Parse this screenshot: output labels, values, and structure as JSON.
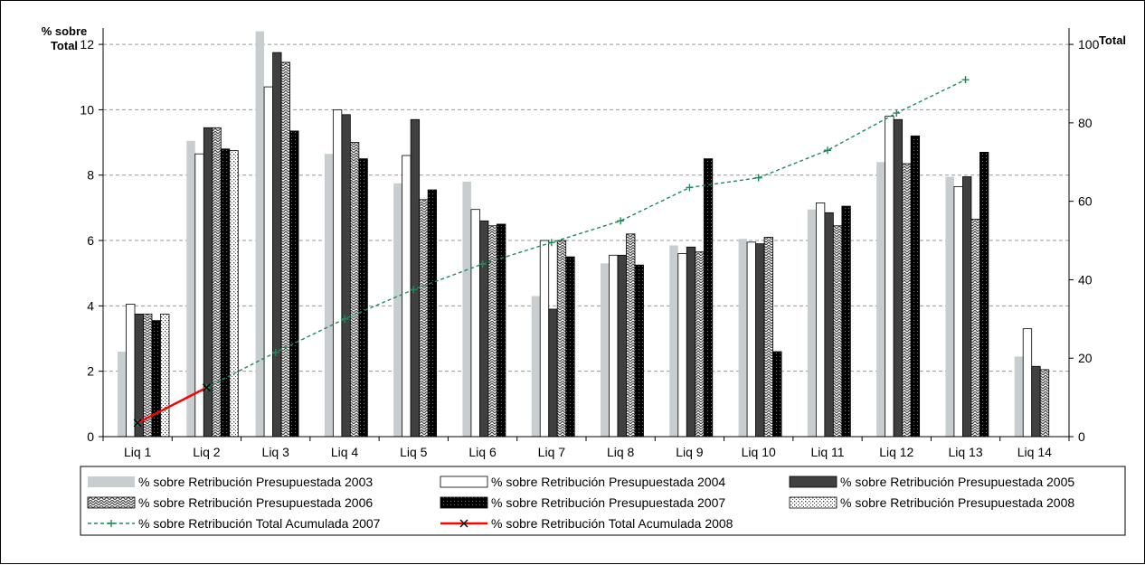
{
  "chart_data": {
    "type": "bar",
    "categories": [
      "Liq 1",
      "Liq 2",
      "Liq 3",
      "Liq 4",
      "Liq 5",
      "Liq 6",
      "Liq 7",
      "Liq 8",
      "Liq 9",
      "Liq 10",
      "Liq 11",
      "Liq 12",
      "Liq 13",
      "Liq 14"
    ],
    "ylabel_left": "% sobre Total",
    "ylabel_right": "Total",
    "ylim_left": [
      0,
      12.5
    ],
    "ylim_right": [
      0,
      104.17
    ],
    "yticks_left": [
      "0",
      "2",
      "4",
      "6",
      "8",
      "10",
      "12"
    ],
    "yticks_right": [
      "0",
      "20",
      "40",
      "60",
      "80",
      "100"
    ],
    "grid": "horizontal dashed",
    "legend_position": "bottom",
    "series": [
      {
        "name": "% sobre Retribución Presupuestada 2003",
        "type": "bar",
        "axis": "left",
        "style": "gray",
        "values": [
          2.6,
          9.05,
          12.4,
          8.65,
          7.75,
          7.8,
          4.3,
          5.3,
          5.85,
          6.05,
          6.95,
          8.4,
          7.95,
          2.45
        ]
      },
      {
        "name": "% sobre Retribución Presupuestada 2004",
        "type": "bar",
        "axis": "left",
        "style": "white",
        "values": [
          4.05,
          8.65,
          10.7,
          10.0,
          8.6,
          6.95,
          6.0,
          5.55,
          5.6,
          5.95,
          7.15,
          9.8,
          7.65,
          3.3
        ]
      },
      {
        "name": "% sobre Retribución Presupuestada 2005",
        "type": "bar",
        "axis": "left",
        "style": "dark",
        "values": [
          3.75,
          9.45,
          11.75,
          9.85,
          9.7,
          6.6,
          3.9,
          5.55,
          5.8,
          5.9,
          6.85,
          9.7,
          7.95,
          2.15
        ]
      },
      {
        "name": "% sobre Retribución Presupuestada 2006",
        "type": "bar",
        "axis": "left",
        "style": "zigzag",
        "values": [
          3.75,
          9.45,
          11.45,
          9.0,
          7.25,
          6.45,
          6.0,
          6.2,
          5.65,
          6.1,
          6.45,
          8.35,
          6.65,
          2.05
        ]
      },
      {
        "name": "% sobre Retribución Presupuestada 2007",
        "type": "bar",
        "axis": "left",
        "style": "black",
        "values": [
          3.55,
          8.8,
          9.35,
          8.5,
          7.55,
          6.5,
          5.5,
          5.25,
          8.5,
          2.6,
          7.05,
          9.2,
          8.7,
          null
        ]
      },
      {
        "name": "% sobre Retribución Presupuestada 2008",
        "type": "bar",
        "axis": "left",
        "style": "dotted",
        "values": [
          3.75,
          8.75,
          null,
          null,
          null,
          null,
          null,
          null,
          null,
          null,
          null,
          null,
          null,
          null
        ]
      },
      {
        "name": "% sobre Retribución Total Acumulada 2007",
        "type": "line",
        "axis": "right",
        "color": "#1e8a5a",
        "values": [
          3.5,
          12.5,
          21.5,
          30.0,
          37.5,
          44.0,
          49.5,
          55.0,
          63.5,
          66.0,
          73.0,
          82.5,
          91.0,
          null
        ]
      },
      {
        "name": "% sobre Retribución Total Acumulada 2008",
        "type": "line",
        "axis": "right",
        "color": "#ff0000",
        "values": [
          3.5,
          12.5,
          null,
          null,
          null,
          null,
          null,
          null,
          null,
          null,
          null,
          null,
          null,
          null
        ]
      }
    ]
  }
}
